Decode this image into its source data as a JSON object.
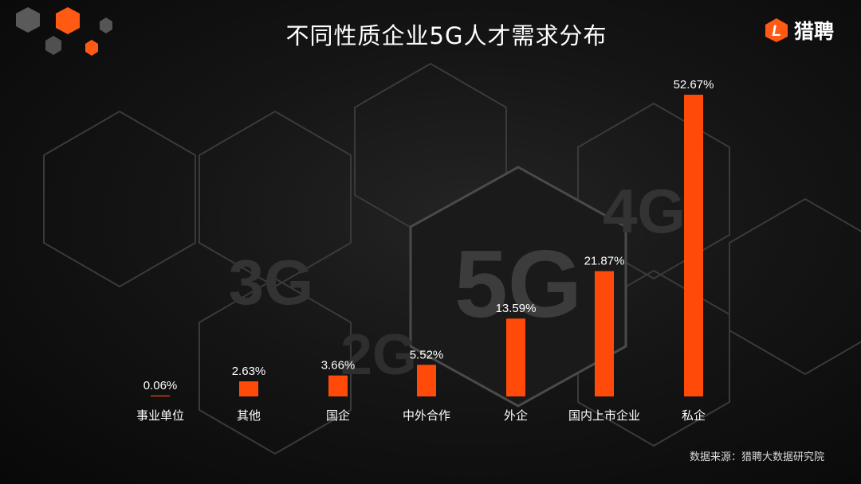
{
  "title": "不同性质企业5G人才需求分布",
  "logo": {
    "text": "猎聘",
    "mark": "L"
  },
  "background_labels": [
    "5G",
    "4G",
    "3G",
    "2G"
  ],
  "source": "数据来源：猎聘大数据研究院",
  "colors": {
    "bar": "#ff4a0a",
    "label": "#ffffff",
    "background": "#141414"
  },
  "chart_data": {
    "type": "bar",
    "title": "不同性质企业5G人才需求分布",
    "categories": [
      "事业单位",
      "其他",
      "国企",
      "中外合作",
      "外企",
      "国内上市企业",
      "私企"
    ],
    "values": [
      0.06,
      2.63,
      3.66,
      5.52,
      13.59,
      21.87,
      52.67
    ],
    "data_labels": [
      "0.06%",
      "2.63%",
      "3.66%",
      "5.52%",
      "13.59%",
      "21.87%",
      "52.67%"
    ],
    "unit": "%",
    "xlabel": "",
    "ylabel": "",
    "ylim": [
      0,
      52.67
    ],
    "grid": false,
    "legend": "none"
  }
}
